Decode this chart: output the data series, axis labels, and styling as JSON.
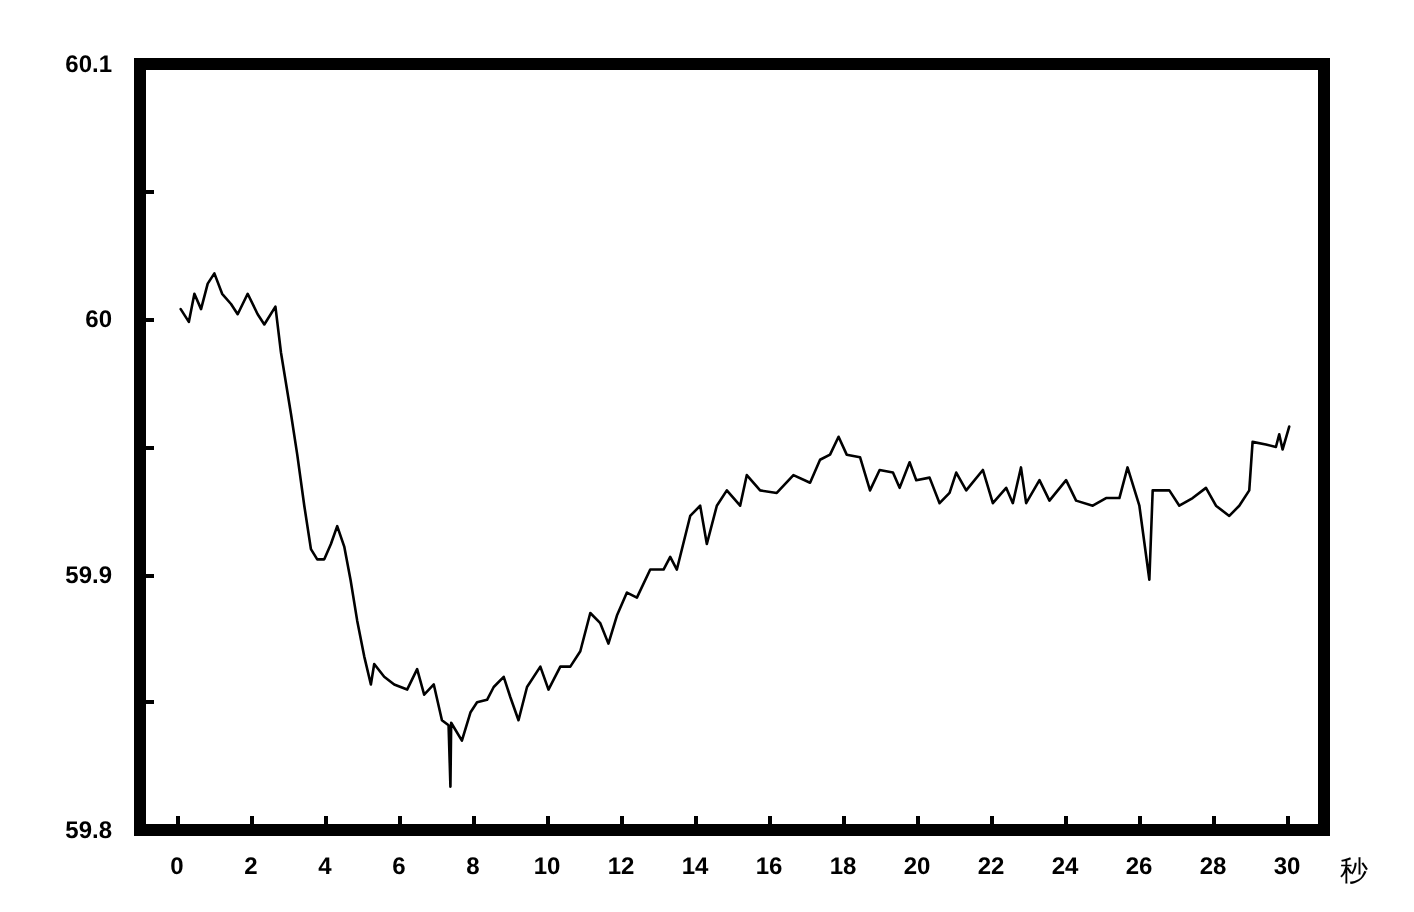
{
  "chart_data": {
    "type": "line",
    "xlabel": "秒",
    "x": [
      0.1,
      0.32,
      0.47,
      0.65,
      0.83,
      1.01,
      1.22,
      1.46,
      1.64,
      1.91,
      2.18,
      2.36,
      2.66,
      2.81,
      3.08,
      3.25,
      3.44,
      3.62,
      3.79,
      3.98,
      4.16,
      4.33,
      4.52,
      4.69,
      4.87,
      5.06,
      5.24,
      5.33,
      5.6,
      5.87,
      6.22,
      6.49,
      6.68,
      6.94,
      7.16,
      7.34,
      7.39,
      7.41,
      7.7,
      7.93,
      8.11,
      8.38,
      8.56,
      8.83,
      9.01,
      9.23,
      9.46,
      9.82,
      10.04,
      10.36,
      10.63,
      10.9,
      11.17,
      11.44,
      11.66,
      11.89,
      12.16,
      12.43,
      12.79,
      13.15,
      13.33,
      13.51,
      13.87,
      14.14,
      14.32,
      14.59,
      14.86,
      15.22,
      15.4,
      15.76,
      16.21,
      16.66,
      17.11,
      17.38,
      17.65,
      17.88,
      18.1,
      18.46,
      18.73,
      18.99,
      19.35,
      19.53,
      19.8,
      19.98,
      20.34,
      20.61,
      20.88,
      21.06,
      21.33,
      21.78,
      22.05,
      22.41,
      22.59,
      22.81,
      22.95,
      23.31,
      23.58,
      24.03,
      24.3,
      24.75,
      25.11,
      25.47,
      25.69,
      26.01,
      26.28,
      26.37,
      26.82,
      27.09,
      27.45,
      27.81,
      28.08,
      28.44,
      28.71,
      28.98,
      29.07,
      29.43,
      29.7,
      29.79,
      29.88,
      30.06
    ],
    "series": [
      {
        "color": "#000000",
        "values": [
          60.004,
          59.999,
          60.01,
          60.004,
          60.014,
          60.018,
          60.01,
          60.006,
          60.002,
          60.01,
          60.002,
          59.998,
          60.005,
          59.987,
          59.963,
          59.947,
          59.927,
          59.91,
          59.906,
          59.906,
          59.912,
          59.919,
          59.911,
          59.898,
          59.882,
          59.868,
          59.857,
          59.865,
          59.86,
          59.857,
          59.855,
          59.863,
          59.853,
          59.857,
          59.843,
          59.841,
          59.817,
          59.842,
          59.835,
          59.846,
          59.85,
          59.851,
          59.856,
          59.86,
          59.852,
          59.843,
          59.856,
          59.864,
          59.855,
          59.864,
          59.864,
          59.87,
          59.885,
          59.881,
          59.873,
          59.884,
          59.893,
          59.891,
          59.902,
          59.902,
          59.907,
          59.902,
          59.923,
          59.927,
          59.912,
          59.927,
          59.933,
          59.927,
          59.939,
          59.933,
          59.932,
          59.939,
          59.936,
          59.945,
          59.947,
          59.954,
          59.947,
          59.946,
          59.933,
          59.941,
          59.94,
          59.934,
          59.944,
          59.937,
          59.938,
          59.928,
          59.932,
          59.94,
          59.933,
          59.941,
          59.928,
          59.934,
          59.928,
          59.942,
          59.928,
          59.937,
          59.929,
          59.937,
          59.929,
          59.927,
          59.93,
          59.93,
          59.942,
          59.927,
          59.898,
          59.933,
          59.933,
          59.927,
          59.93,
          59.934,
          59.927,
          59.923,
          59.927,
          59.933,
          59.952,
          59.951,
          59.95,
          59.955,
          59.949,
          59.958
        ]
      }
    ],
    "xlim": [
      -1,
      31
    ],
    "xticks": [
      0,
      2,
      4,
      6,
      8,
      10,
      12,
      14,
      16,
      18,
      20,
      22,
      24,
      26,
      28,
      30
    ],
    "ylim": [
      59.8,
      60.1
    ],
    "yticks": [
      59.8,
      {
        "value": 59.85,
        "label": null
      },
      59.9,
      {
        "value": 59.95,
        "label": null
      },
      60,
      {
        "value": 60.05,
        "label": null
      },
      60.1
    ],
    "grid": false,
    "marker": "none",
    "line_style": "solid"
  }
}
